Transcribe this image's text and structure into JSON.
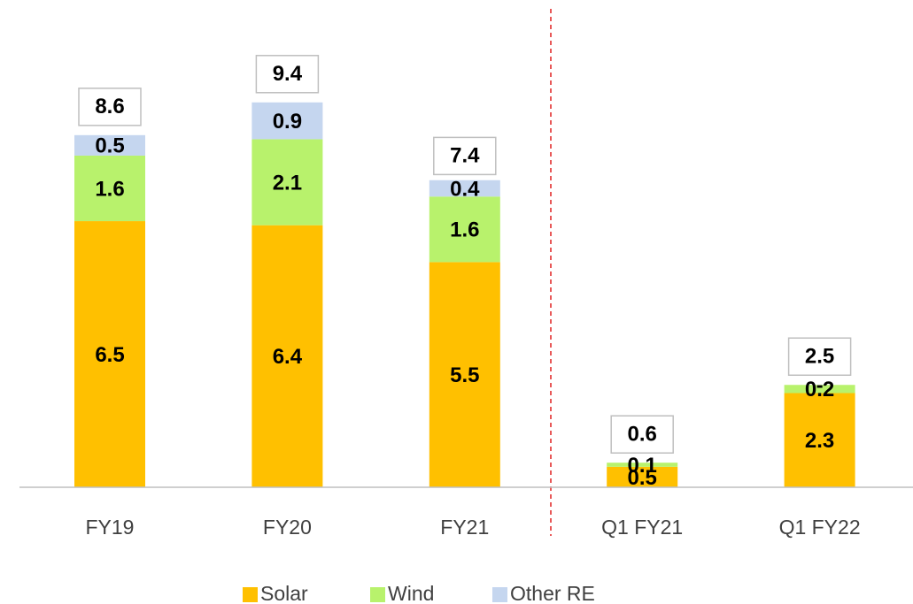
{
  "chart_data": {
    "type": "stacked_bar",
    "categories": [
      "FY19",
      "FY20",
      "FY21",
      "Q1 FY21",
      "Q1 FY22"
    ],
    "series": [
      {
        "name": "Solar",
        "color": "#ffc000",
        "values": [
          6.5,
          6.4,
          5.5,
          0.5,
          2.3
        ]
      },
      {
        "name": "Wind",
        "color": "#b8f26c",
        "values": [
          1.6,
          2.1,
          1.6,
          0.1,
          0.2
        ]
      },
      {
        "name": "Other RE",
        "color": "#c5d6ef",
        "values": [
          0.5,
          0.9,
          0.4,
          0,
          0
        ],
        "value_labels": [
          "0.5",
          "0.9",
          "0.4",
          null,
          "-"
        ]
      }
    ],
    "totals": [
      8.6,
      9.4,
      7.4,
      0.6,
      2.5
    ]
  }
}
